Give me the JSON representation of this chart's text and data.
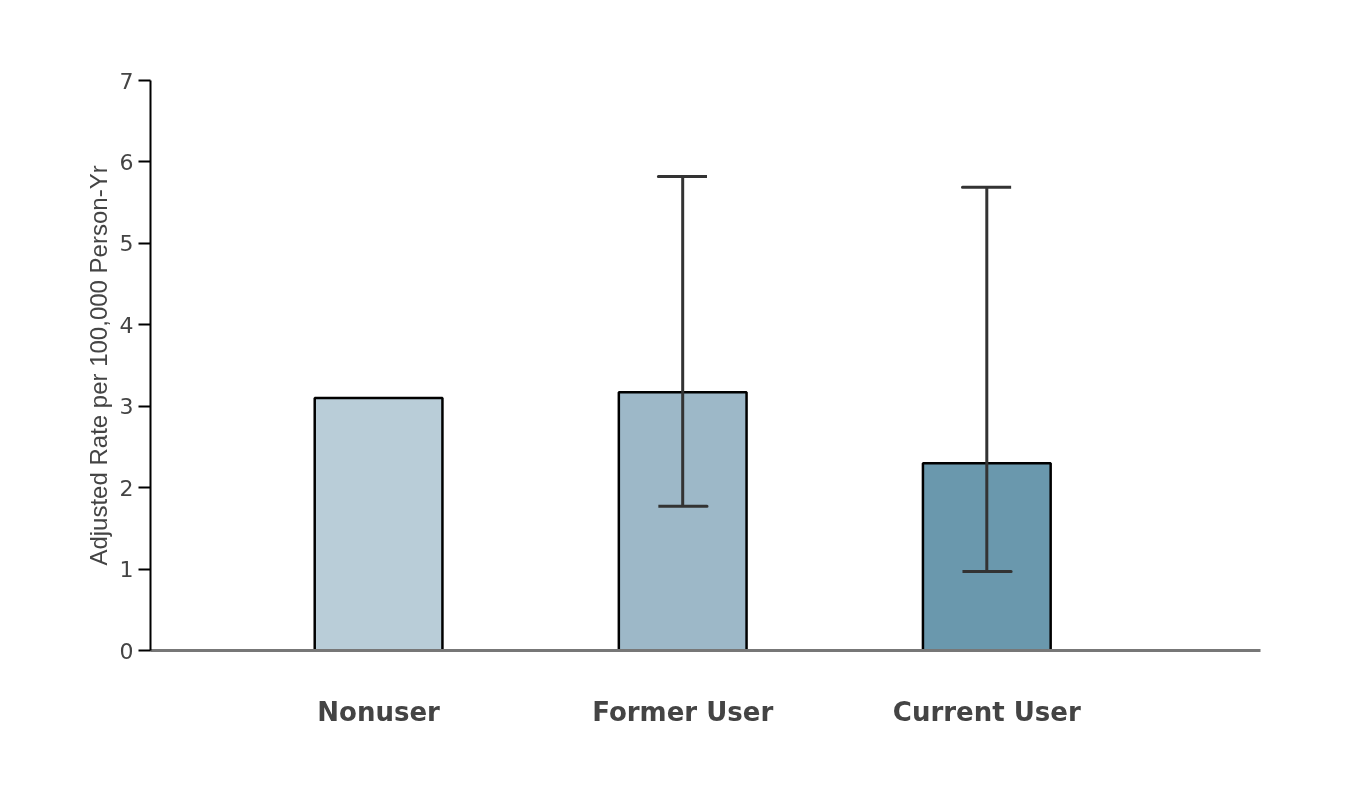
{
  "chart_data": {
    "type": "bar",
    "ylabel": "Adjusted Rate per 100,000 Person-Yr",
    "categories": [
      "Nonuser",
      "Former User",
      "Current User"
    ],
    "values": [
      3.1,
      3.17,
      2.3
    ],
    "colors": [
      "#b9cdd8",
      "#9db8c8",
      "#6a98ad"
    ],
    "errors": [
      null,
      [
        1.77,
        5.82
      ],
      [
        0.97,
        5.69
      ]
    ],
    "ylim": [
      0,
      7
    ],
    "yticks": [
      0,
      1,
      2,
      3,
      4,
      5,
      6,
      7
    ],
    "grid": false
  }
}
